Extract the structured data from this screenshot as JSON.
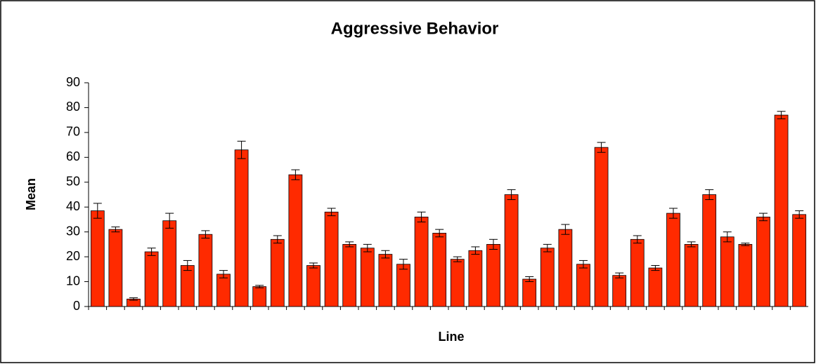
{
  "chart_data": {
    "type": "bar",
    "title": "Aggressive Behavior",
    "x_label": "Line",
    "y_label": "Mean",
    "categories": [
      null,
      null,
      null,
      null,
      null,
      null,
      null,
      null,
      null,
      null,
      null,
      null,
      null,
      null,
      null,
      null,
      null,
      null,
      null,
      null,
      null,
      null,
      null,
      null,
      null,
      null,
      null,
      null,
      null,
      null,
      null,
      null,
      null,
      null,
      null,
      null,
      null,
      null,
      null,
      null
    ],
    "values": [
      38.5,
      31,
      3,
      22,
      34.5,
      16.5,
      29,
      13,
      63,
      8,
      27,
      53,
      16.5,
      38,
      25,
      23.5,
      21,
      17,
      36,
      29.5,
      19,
      22.5,
      25,
      45,
      11,
      23.5,
      31,
      17,
      64,
      12.5,
      27,
      15.5,
      37.5,
      25,
      45,
      28,
      25,
      36,
      77,
      37
    ],
    "errors": [
      3,
      1,
      0.5,
      1.5,
      3,
      2,
      1.5,
      1.5,
      3.5,
      0.5,
      1.5,
      2,
      1,
      1.5,
      1,
      1.5,
      1.5,
      2,
      2,
      1.5,
      1,
      1.5,
      2,
      2,
      1,
      1.5,
      2,
      1.5,
      2,
      1,
      1.5,
      1,
      2,
      1,
      2,
      2,
      0.5,
      1.5,
      1.5,
      1.5
    ],
    "color": "#ff2a00",
    "ylim": [
      0,
      90
    ],
    "yticks": [
      0,
      10,
      20,
      30,
      40,
      50,
      60,
      70,
      80,
      90
    ],
    "grid": false
  }
}
